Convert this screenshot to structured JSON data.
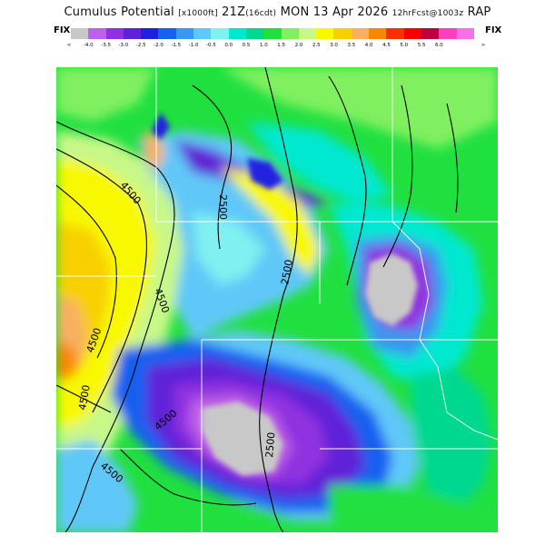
{
  "header": {
    "title_main": "Cumulus Potential",
    "title_units": "[x1000ft]",
    "title_time": "21Z",
    "title_local": "(16cdt)",
    "title_date": "MON 13 Apr 2026",
    "title_fcst": "12hrFcst@1003z",
    "title_model": "RAP"
  },
  "legend": {
    "fix_left": "FIX",
    "fix_right": "FIX",
    "arrow_left": "<",
    "arrow_right": ">",
    "colors": [
      "#c8c8c8",
      "#c060e8",
      "#9030e0",
      "#6020d8",
      "#2020e0",
      "#1860f0",
      "#3898f0",
      "#60c8f8",
      "#80f0f0",
      "#00e8d0",
      "#00d890",
      "#20e040",
      "#80f060",
      "#c8f888",
      "#f8f800",
      "#f8d000",
      "#f8b060",
      "#f88800",
      "#f83000",
      "#f80000",
      "#c00040",
      "#f840c0",
      "#f870e8"
    ],
    "labels": [
      "-4.0",
      "-3.5",
      "-3.0",
      "-2.5",
      "-2.0",
      "-1.5",
      "-1.0",
      "-0.5",
      "0.0",
      "0.5",
      "1.0",
      "1.5",
      "2.0",
      "2.5",
      "3.0",
      "3.5",
      "4.0",
      "4.5",
      "5.0",
      "5.5",
      "6.0"
    ]
  },
  "map": {
    "contour_labels": [
      "2500",
      "2500",
      "2500",
      "4500",
      "4500",
      "4500",
      "4500",
      "4500",
      "4500"
    ]
  }
}
